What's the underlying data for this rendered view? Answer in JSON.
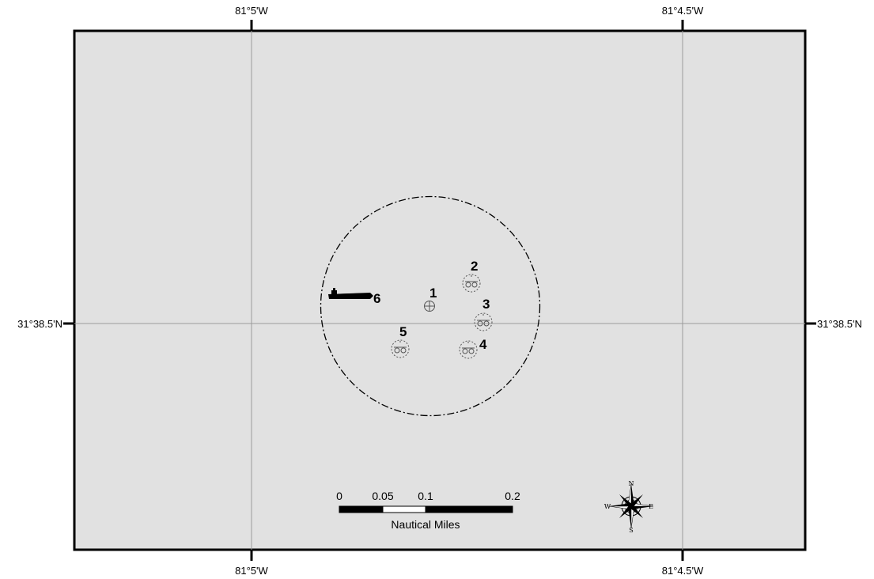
{
  "map": {
    "graticule": {
      "lon_top_left": "81°5'W",
      "lon_top_right": "81°4.5'W",
      "lon_bottom_left": "81°5'W",
      "lon_bottom_right": "81°4.5'W",
      "lat_left": "31°38.5'N",
      "lat_right": "31°38.5'N"
    },
    "features": [
      {
        "id": "1",
        "label": "1",
        "icon": "target-crosshair-icon"
      },
      {
        "id": "2",
        "label": "2",
        "icon": "wreck-symbol-icon"
      },
      {
        "id": "3",
        "label": "3",
        "icon": "wreck-symbol-icon"
      },
      {
        "id": "4",
        "label": "4",
        "icon": "wreck-symbol-icon"
      },
      {
        "id": "5",
        "label": "5",
        "icon": "wreck-symbol-icon"
      },
      {
        "id": "6",
        "label": "6",
        "icon": "ship-icon"
      }
    ],
    "scale_bar": {
      "ticks": [
        "0",
        "0.05",
        "0.1",
        "0.2"
      ],
      "unit": "Nautical Miles"
    },
    "compass": {
      "n": "N",
      "s": "S",
      "e": "E",
      "w": "W"
    },
    "colors": {
      "background": "#e1e1e1",
      "frame": "#000000",
      "graticule": "#9a9a9a",
      "symbol": "#555555"
    }
  }
}
